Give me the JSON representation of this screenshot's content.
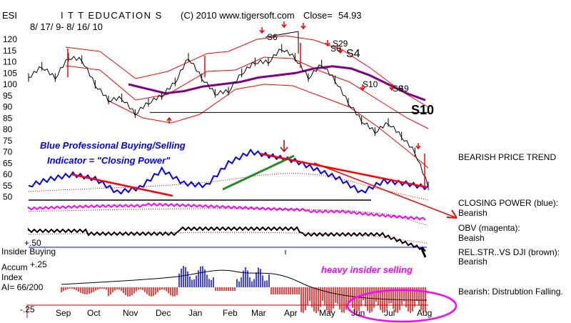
{
  "header": {
    "symbol": "ESI",
    "name": "I T T EDUCATION S",
    "copyright": "(C) 2010 www.tigersoft.com",
    "close_label": "Close=",
    "close_value": "54.93",
    "date_range": "8/ 17/ 9- 8/ 16/ 10"
  },
  "colors": {
    "price": "#000000",
    "bands": "#ff0000",
    "ma": "#800080",
    "closing_power": "#0000ff",
    "obv": "#ff00ff",
    "relstr": "#000000",
    "accum_pos": "#0000ff",
    "accum_neg": "#ff0000",
    "green_line": "#228b22",
    "annot_blue": "#0000ff",
    "annot_magenta": "#ff00ff"
  },
  "chart_data": {
    "type": "line",
    "months": [
      "Sep",
      "Oct",
      "Nov",
      "Dec",
      "Jan",
      "Feb",
      "Mar",
      "Apr",
      "May",
      "Jun",
      "Jul",
      "Aug"
    ],
    "price_ticks": [
      120,
      115,
      110,
      105,
      100,
      95,
      90,
      85,
      80,
      75,
      70,
      65,
      60,
      55,
      50
    ],
    "price_close": [
      103,
      108,
      103,
      112,
      111,
      100,
      93,
      94,
      87,
      92,
      95,
      101,
      112,
      103,
      96,
      97,
      105,
      110,
      110,
      116,
      112,
      103,
      109,
      102,
      92,
      84,
      79,
      83,
      77,
      70,
      54.93
    ],
    "ma_curve": [
      null,
      null,
      null,
      null,
      null,
      null,
      100,
      98,
      96,
      97,
      99,
      100,
      101,
      103,
      104,
      105,
      107,
      108,
      107,
      104,
      100,
      96,
      93
    ],
    "closing_power": [
      55,
      58,
      60,
      58,
      52,
      54,
      62,
      56,
      55,
      65,
      70,
      68,
      66,
      62,
      58,
      52,
      57,
      56,
      54
    ],
    "signals": [
      "S6",
      "S29",
      "S6",
      "S4",
      "S10",
      "S9",
      "S9",
      "S10"
    ],
    "accum_ticks": [
      "+.25",
      "-.25"
    ],
    "insider_tick": "+.50",
    "panel_labels": {
      "insider": "Insider Buying",
      "accum_title": "Accum",
      "accum_sub": "Index",
      "ai": "AI= 66/200"
    },
    "annotations": {
      "cp_line1": "Blue Professional Buying/Selling",
      "cp_line2": "Indicator = \"Closing Power\"",
      "heavy_insider": "heavy insider selling"
    },
    "legend": [
      {
        "title": "BEARISH PRICE TREND",
        "value": ""
      },
      {
        "title": "CLOSING POWER (blue):",
        "value": "Bearish"
      },
      {
        "title": "OBV (magenta):",
        "value": "Beaish"
      },
      {
        "title": "REL.STR..VS DJI (brown):",
        "value": "Bearish"
      },
      {
        "title": "Bearish: Distrubtion Falling.",
        "value": ""
      }
    ]
  }
}
